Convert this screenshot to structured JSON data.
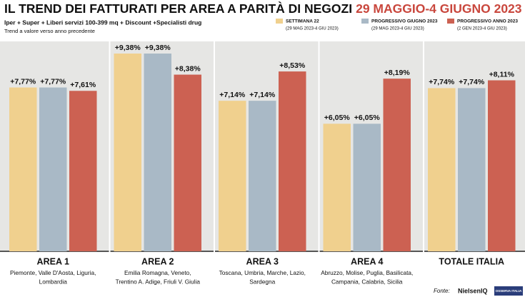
{
  "chart_data": {
    "type": "bar",
    "title": "IL TREND DEI FATTURATI PER AREA A PARITÀ DI NEGOZI",
    "title_dates": "29 MAGGIO-4 GIUGNO 2023",
    "subtitle": "Iper + Super + Liberi servizi 100-399 mq + Discount +Specialisti drug",
    "note": "Trend a valore verso anno precedente",
    "categories": [
      "AREA 1",
      "AREA 2",
      "AREA 3",
      "AREA 4",
      "TOTALE ITALIA"
    ],
    "category_descriptions": [
      [
        "Piemonte, Valle D'Aosta, Liguria,",
        "Lombardia"
      ],
      [
        "Emilia Romagna, Veneto,",
        "Trentino A. Adige, Friuli V. Giulia"
      ],
      [
        "Toscana, Umbria, Marche, Lazio,",
        "Sardegna"
      ],
      [
        "Abruzzo, Molise, Puglia, Basilicata,",
        "Campania, Calabria, Sicilia"
      ],
      []
    ],
    "series": [
      {
        "name": "SETTIMANA 22",
        "period": "(29 MAG 2023-4 GIU 2023)",
        "color": "#f0d08e",
        "values": [
          7.77,
          9.38,
          7.14,
          6.05,
          7.74
        ],
        "value_labels": [
          "+7,77%",
          "+9,38%",
          "+7,14%",
          "+6,05%",
          "+7,74%"
        ]
      },
      {
        "name": "PROGRESSIVO GIUGNO 2023",
        "period": "(29 MAG 2023-4 GIU 2023)",
        "color": "#a9b9c6",
        "values": [
          7.77,
          9.38,
          7.14,
          6.05,
          7.74
        ],
        "value_labels": [
          "+7,77%",
          "+9,38%",
          "+7,14%",
          "+6,05%",
          "+7,74%"
        ]
      },
      {
        "name": "PROGRESSIVO ANNO 2023",
        "period": "(2 GEN 2023-4 GIU 2023)",
        "color": "#cc6152",
        "values": [
          7.61,
          8.38,
          8.53,
          8.19,
          8.11
        ],
        "value_labels": [
          "+7,61%",
          "+8,38%",
          "+8,53%",
          "+8,19%",
          "+8,11%"
        ]
      }
    ]
  },
  "footer": {
    "source_label": "Fonte:",
    "source": "NielsenIQ",
    "logo": "OSSERVA ITALIA"
  }
}
